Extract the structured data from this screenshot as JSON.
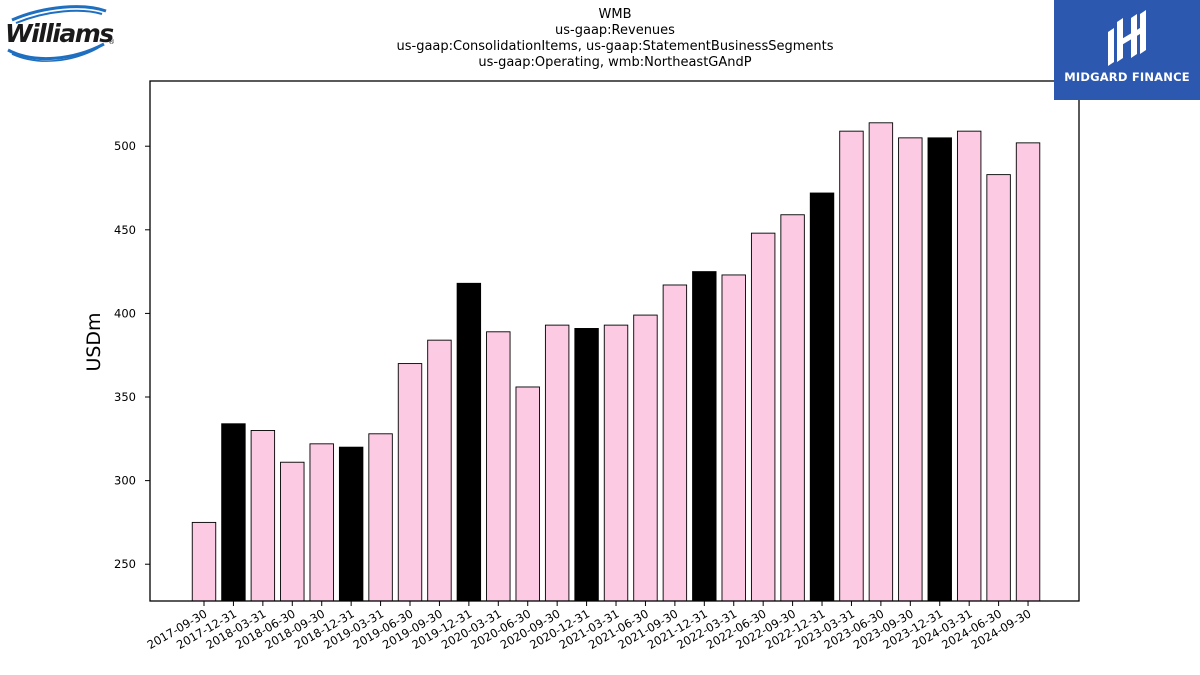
{
  "chart_data": {
    "type": "bar",
    "title_lines": [
      "WMB",
      "us-gaap:Revenues",
      "us-gaap:ConsolidationItems, us-gaap:StatementBusinessSegments",
      "us-gaap:Operating, wmb:NortheastGAndP"
    ],
    "xlabel": "",
    "ylabel": "USDm",
    "ylim": [
      228,
      539
    ],
    "yticks": [
      250,
      300,
      350,
      400,
      450,
      500
    ],
    "categories": [
      "2017-09-30",
      "2017-12-31",
      "2018-03-31",
      "2018-06-30",
      "2018-09-30",
      "2018-12-31",
      "2019-03-31",
      "2019-06-30",
      "2019-09-30",
      "2019-12-31",
      "2020-03-31",
      "2020-06-30",
      "2020-09-30",
      "2020-12-31",
      "2021-03-31",
      "2021-06-30",
      "2021-09-30",
      "2021-12-31",
      "2022-03-31",
      "2022-06-30",
      "2022-09-30",
      "2022-12-31",
      "2023-03-31",
      "2023-06-30",
      "2023-09-30",
      "2023-12-31",
      "2024-03-31",
      "2024-06-30",
      "2024-09-30"
    ],
    "values": [
      275,
      334,
      330,
      311,
      322,
      320,
      328,
      370,
      384,
      418,
      389,
      356,
      393,
      391,
      393,
      399,
      417,
      425,
      423,
      448,
      459,
      472,
      509,
      514,
      505,
      505,
      509,
      483,
      502
    ],
    "colors": {
      "quarter": "#fccbe3",
      "year_end": "#000000",
      "edge": "#000000"
    },
    "grid": false,
    "legend": "none"
  },
  "logos": {
    "williams": {
      "text": "Williams",
      "mark": "®",
      "colors": {
        "text": "#1a1a1a",
        "swoosh": "#1f6fc0"
      }
    },
    "midgard": {
      "text": "MIDGARD FINANCE",
      "colors": {
        "background": "#2c58b0",
        "foreground": "#ffffff"
      }
    }
  }
}
